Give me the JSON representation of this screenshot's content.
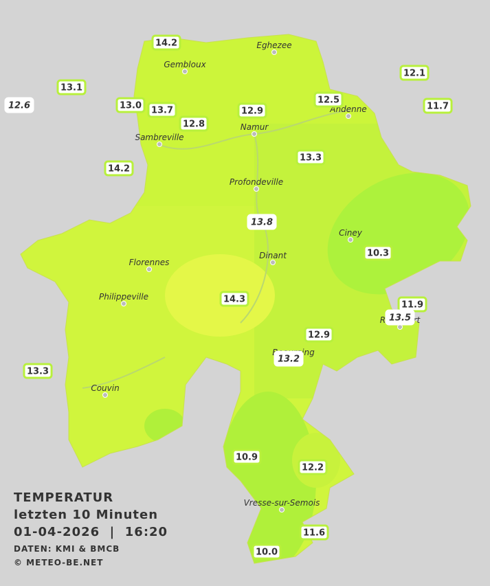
{
  "header": {
    "title": "TEMPERATUR",
    "subtitle": "letzten 10 Minuten",
    "timestamp": "01-04-2026  |  16:20",
    "source": "DATEN: KMI & BMCB",
    "copyright": "© METEO-BE.NET"
  },
  "towns": [
    "Eghezee",
    "Gembloux",
    "Andenne",
    "Namur",
    "Sambreville",
    "Profondeville",
    "Ciney",
    "Dinant",
    "Florennes",
    "Philippeville",
    "Rochefort",
    "Beauraing",
    "Couvin",
    "Vresse-sur-Semois"
  ],
  "stations": [
    {
      "value": "14.2"
    },
    {
      "value": "13.1"
    },
    {
      "value": "12.6",
      "italic": true
    },
    {
      "value": "13.0"
    },
    {
      "value": "13.7"
    },
    {
      "value": "12.8"
    },
    {
      "value": "12.9"
    },
    {
      "value": "12.5"
    },
    {
      "value": "12.1"
    },
    {
      "value": "11.7"
    },
    {
      "value": "14.2"
    },
    {
      "value": "13.3"
    },
    {
      "value": "13.8",
      "italic": true
    },
    {
      "value": "10.3"
    },
    {
      "value": "14.3"
    },
    {
      "value": "11.9"
    },
    {
      "value": "13.5",
      "italic": true
    },
    {
      "value": "12.9"
    },
    {
      "value": "13.2",
      "italic": true
    },
    {
      "value": "13.3"
    },
    {
      "value": "10.9"
    },
    {
      "value": "12.2"
    },
    {
      "value": "11.6"
    },
    {
      "value": "10.0"
    }
  ]
}
